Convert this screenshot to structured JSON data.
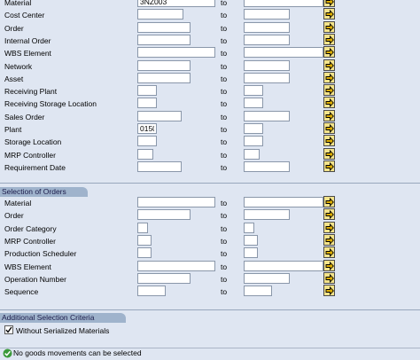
{
  "section1": {
    "rows": [
      {
        "label": "Material",
        "low": "3NZ003",
        "high": "",
        "to": "to"
      },
      {
        "label": "Cost Center",
        "low": "",
        "high": "",
        "to": "to"
      },
      {
        "label": "Order",
        "low": "",
        "high": "",
        "to": "to"
      },
      {
        "label": "Internal Order",
        "low": "",
        "high": "",
        "to": "to"
      },
      {
        "label": "WBS Element",
        "low": "",
        "high": "",
        "to": "to"
      },
      {
        "label": "Network",
        "low": "",
        "high": "",
        "to": "to"
      },
      {
        "label": "Asset",
        "low": "",
        "high": "",
        "to": "to"
      },
      {
        "label": "Receiving Plant",
        "low": "",
        "high": "",
        "to": "to"
      },
      {
        "label": "Receiving Storage Location",
        "low": "",
        "high": "",
        "to": "to"
      },
      {
        "label": "Sales Order",
        "low": "",
        "high": "",
        "to": "to"
      },
      {
        "label": "Plant",
        "low": "0150",
        "high": "",
        "to": "to"
      },
      {
        "label": "Storage Location",
        "low": "",
        "high": "",
        "to": "to"
      },
      {
        "label": "MRP Controller",
        "low": "",
        "high": "",
        "to": "to"
      },
      {
        "label": "Requirement Date",
        "low": "",
        "high": "",
        "to": "to"
      }
    ]
  },
  "section2": {
    "title": "Selection of Orders",
    "rows": [
      {
        "label": "Material",
        "low": "",
        "high": "",
        "to": "to"
      },
      {
        "label": "Order",
        "low": "",
        "high": "",
        "to": "to"
      },
      {
        "label": "Order Category",
        "low": "",
        "high": "",
        "to": "to"
      },
      {
        "label": "MRP Controller",
        "low": "",
        "high": "",
        "to": "to"
      },
      {
        "label": "Production Scheduler",
        "low": "",
        "high": "",
        "to": "to"
      },
      {
        "label": "WBS Element",
        "low": "",
        "high": "",
        "to": "to"
      },
      {
        "label": "Operation Number",
        "low": "",
        "high": "",
        "to": "to"
      },
      {
        "label": "Sequence",
        "low": "",
        "high": "",
        "to": "to"
      }
    ]
  },
  "section3": {
    "title": "Additional Selection Criteria",
    "checkbox_label": "Without Serialized Materials",
    "checked": true
  },
  "status": {
    "message": "No goods movements can be selected",
    "icon": "check-icon"
  },
  "icons": {
    "multiple_selection": "multiple-selection-arrow-icon"
  }
}
